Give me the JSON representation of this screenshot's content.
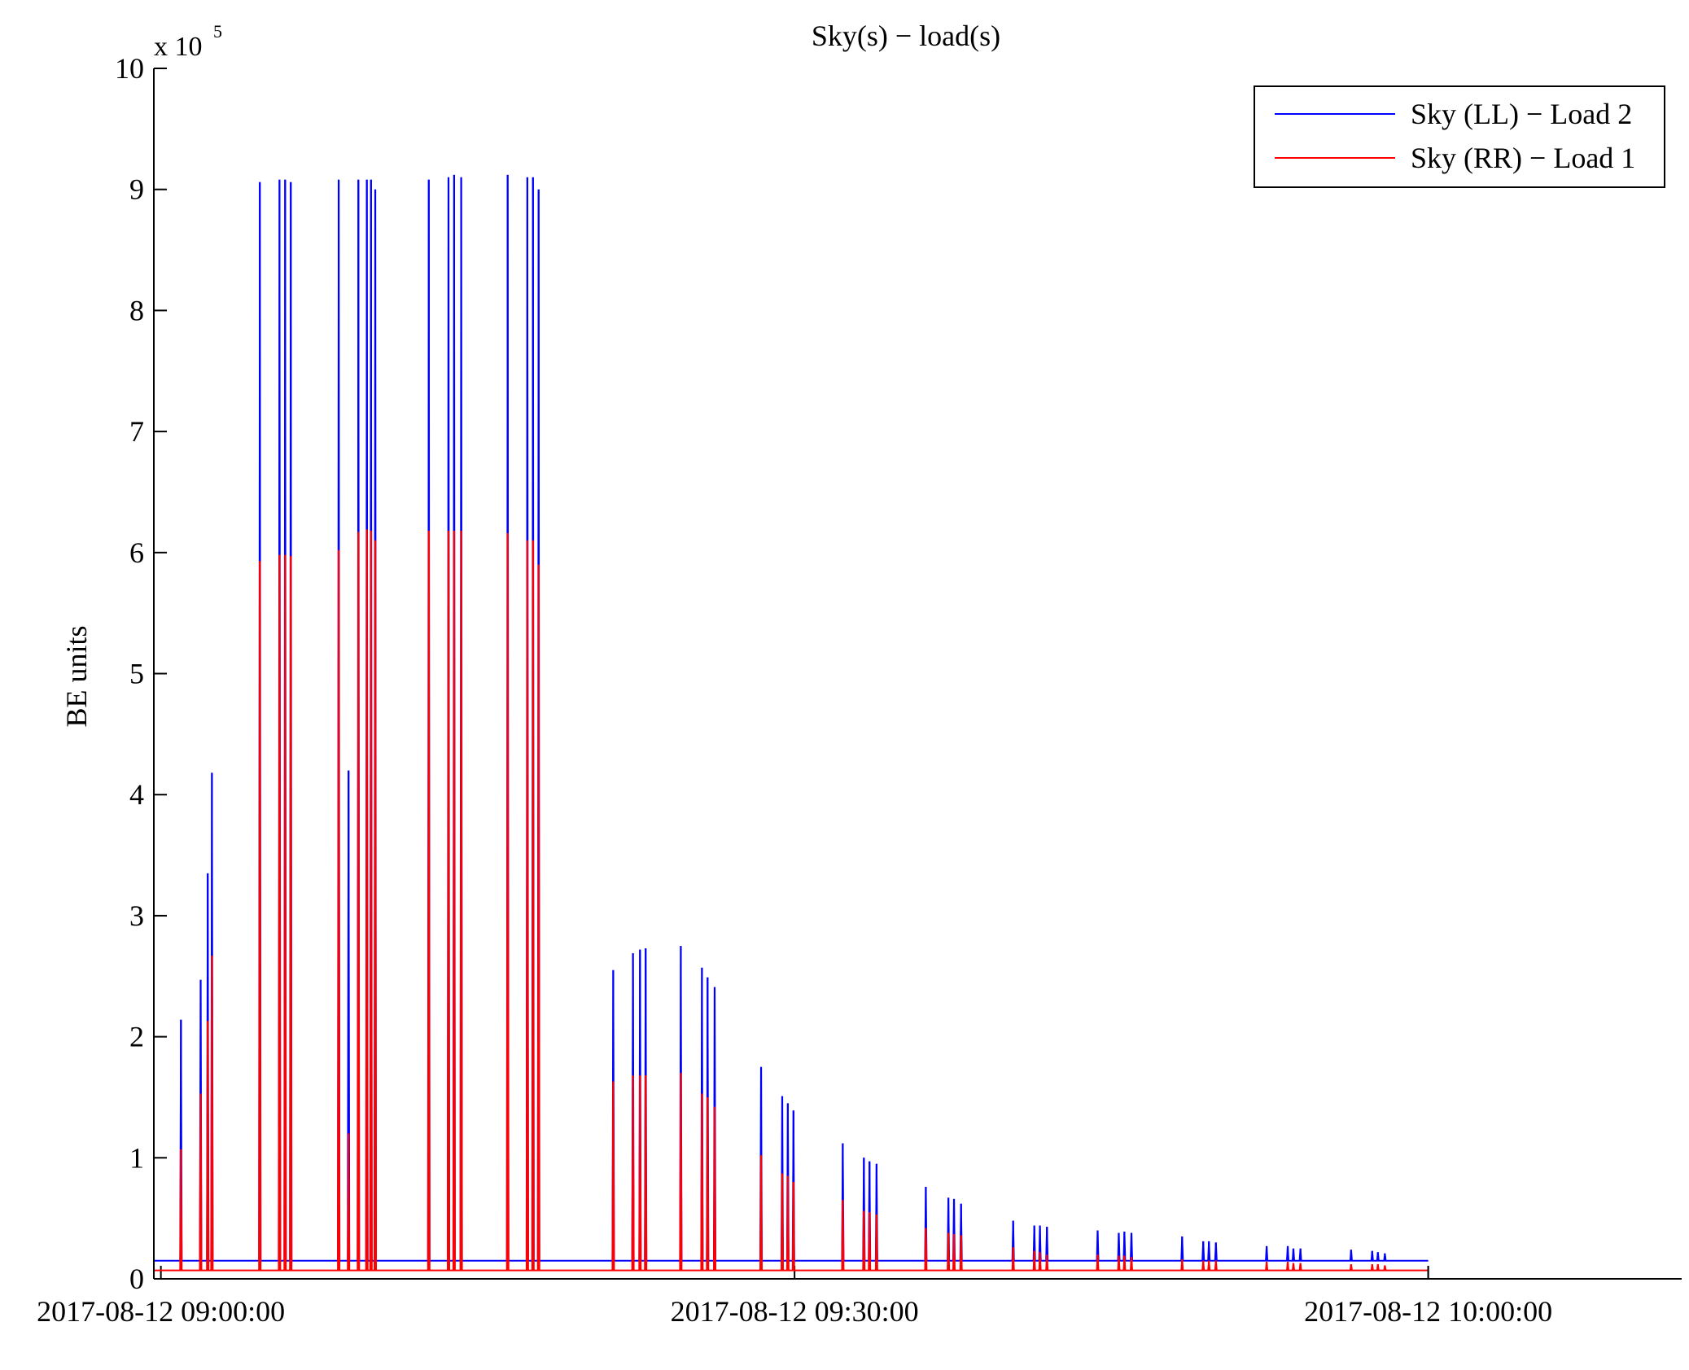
{
  "chart_data": {
    "type": "line",
    "title": "Sky(s) − load(s)",
    "xlabel": "",
    "ylabel": "BE units",
    "y_scale_label": "x 10",
    "y_scale_exponent": "5",
    "x_range": [
      "2017-08-12 08:59:40",
      "2017-08-12 10:12:00"
    ],
    "ylim": [
      0,
      10
    ],
    "y_ticks": [
      0,
      1,
      2,
      3,
      4,
      5,
      6,
      7,
      8,
      9,
      10
    ],
    "x_ticks": [
      "2017-08-12 09:00:00",
      "2017-08-12 09:30:00",
      "2017-08-12 10:00:00"
    ],
    "grid": false,
    "legend_position": "top-right",
    "baseline": {
      "LL": 0.15,
      "RR": 0.07
    },
    "series": [
      {
        "name": "Sky (LL) − Load 2",
        "color": "#0000ff",
        "spikes": [
          [
            "09:00:57",
            2.14
          ],
          [
            "09:01:53",
            2.47
          ],
          [
            "09:02:13",
            3.35
          ],
          [
            "09:02:25",
            4.18
          ],
          [
            "09:04:41",
            9.06
          ],
          [
            "09:05:37",
            9.08
          ],
          [
            "09:05:53",
            9.08
          ],
          [
            "09:06:09",
            9.06
          ],
          [
            "09:08:25",
            9.08
          ],
          [
            "09:08:53",
            4.2
          ],
          [
            "09:09:21",
            9.08
          ],
          [
            "09:09:45",
            9.08
          ],
          [
            "09:09:57",
            9.08
          ],
          [
            "09:10:09",
            9.0
          ],
          [
            "09:12:41",
            9.08
          ],
          [
            "09:13:37",
            9.1
          ],
          [
            "09:13:53",
            9.12
          ],
          [
            "09:14:13",
            9.1
          ],
          [
            "09:16:25",
            9.12
          ],
          [
            "09:17:21",
            9.1
          ],
          [
            "09:17:37",
            9.1
          ],
          [
            "09:17:53",
            9.0
          ],
          [
            "09:21:25",
            2.55
          ],
          [
            "09:22:21",
            2.69
          ],
          [
            "09:22:41",
            2.72
          ],
          [
            "09:22:57",
            2.73
          ],
          [
            "09:24:37",
            2.75
          ],
          [
            "09:25:37",
            2.57
          ],
          [
            "09:25:53",
            2.49
          ],
          [
            "09:26:13",
            2.41
          ],
          [
            "09:28:25",
            1.75
          ],
          [
            "09:29:25",
            1.51
          ],
          [
            "09:29:41",
            1.45
          ],
          [
            "09:29:57",
            1.39
          ],
          [
            "09:32:17",
            1.12
          ],
          [
            "09:33:17",
            1.0
          ],
          [
            "09:33:33",
            0.97
          ],
          [
            "09:33:53",
            0.95
          ],
          [
            "09:36:13",
            0.76
          ],
          [
            "09:37:17",
            0.67
          ],
          [
            "09:37:33",
            0.66
          ],
          [
            "09:37:53",
            0.62
          ],
          [
            "09:40:21",
            0.48
          ],
          [
            "09:41:21",
            0.44
          ],
          [
            "09:41:37",
            0.44
          ],
          [
            "09:41:57",
            0.43
          ],
          [
            "09:44:21",
            0.4
          ],
          [
            "09:45:21",
            0.38
          ],
          [
            "09:45:37",
            0.39
          ],
          [
            "09:45:57",
            0.38
          ],
          [
            "09:48:21",
            0.35
          ],
          [
            "09:49:21",
            0.31
          ],
          [
            "09:49:37",
            0.31
          ],
          [
            "09:49:57",
            0.3
          ],
          [
            "09:52:21",
            0.27
          ],
          [
            "09:53:21",
            0.27
          ],
          [
            "09:53:37",
            0.25
          ],
          [
            "09:53:57",
            0.25
          ],
          [
            "09:56:21",
            0.24
          ],
          [
            "09:57:21",
            0.23
          ],
          [
            "09:57:37",
            0.22
          ],
          [
            "09:57:57",
            0.21
          ]
        ]
      },
      {
        "name": "Sky (RR) − Load 1",
        "color": "#ff0000",
        "spikes": [
          [
            "09:00:57",
            1.07
          ],
          [
            "09:01:53",
            1.53
          ],
          [
            "09:02:13",
            2.13
          ],
          [
            "09:02:25",
            2.67
          ],
          [
            "09:04:41",
            5.93
          ],
          [
            "09:05:37",
            5.98
          ],
          [
            "09:05:53",
            5.98
          ],
          [
            "09:06:09",
            5.97
          ],
          [
            "09:08:25",
            6.02
          ],
          [
            "09:08:53",
            1.2
          ],
          [
            "09:09:21",
            6.17
          ],
          [
            "09:09:45",
            6.19
          ],
          [
            "09:09:57",
            6.18
          ],
          [
            "09:10:09",
            6.1
          ],
          [
            "09:12:41",
            6.18
          ],
          [
            "09:13:37",
            6.18
          ],
          [
            "09:13:53",
            6.18
          ],
          [
            "09:14:13",
            6.18
          ],
          [
            "09:16:25",
            6.16
          ],
          [
            "09:17:21",
            6.1
          ],
          [
            "09:17:37",
            6.1
          ],
          [
            "09:17:53",
            5.9
          ],
          [
            "09:21:25",
            1.63
          ],
          [
            "09:22:21",
            1.68
          ],
          [
            "09:22:41",
            1.68
          ],
          [
            "09:22:57",
            1.68
          ],
          [
            "09:24:37",
            1.7
          ],
          [
            "09:25:37",
            1.53
          ],
          [
            "09:25:53",
            1.5
          ],
          [
            "09:26:13",
            1.42
          ],
          [
            "09:28:25",
            1.02
          ],
          [
            "09:29:25",
            0.87
          ],
          [
            "09:29:41",
            0.85
          ],
          [
            "09:29:57",
            0.8
          ],
          [
            "09:32:17",
            0.65
          ],
          [
            "09:33:17",
            0.56
          ],
          [
            "09:33:33",
            0.55
          ],
          [
            "09:33:53",
            0.53
          ],
          [
            "09:36:13",
            0.42
          ],
          [
            "09:37:17",
            0.38
          ],
          [
            "09:37:33",
            0.37
          ],
          [
            "09:37:53",
            0.36
          ],
          [
            "09:40:21",
            0.26
          ],
          [
            "09:41:21",
            0.23
          ],
          [
            "09:41:37",
            0.22
          ],
          [
            "09:41:57",
            0.2
          ],
          [
            "09:44:21",
            0.2
          ],
          [
            "09:45:21",
            0.19
          ],
          [
            "09:45:37",
            0.19
          ],
          [
            "09:45:57",
            0.18
          ],
          [
            "09:48:21",
            0.16
          ],
          [
            "09:49:21",
            0.15
          ],
          [
            "09:49:37",
            0.15
          ],
          [
            "09:49:57",
            0.15
          ],
          [
            "09:52:21",
            0.14
          ],
          [
            "09:53:21",
            0.14
          ],
          [
            "09:53:37",
            0.13
          ],
          [
            "09:53:57",
            0.13
          ],
          [
            "09:56:21",
            0.12
          ],
          [
            "09:57:21",
            0.12
          ],
          [
            "09:57:37",
            0.12
          ],
          [
            "09:57:57",
            0.11
          ]
        ]
      }
    ],
    "data_end": "2017-08-12 10:00:00"
  }
}
